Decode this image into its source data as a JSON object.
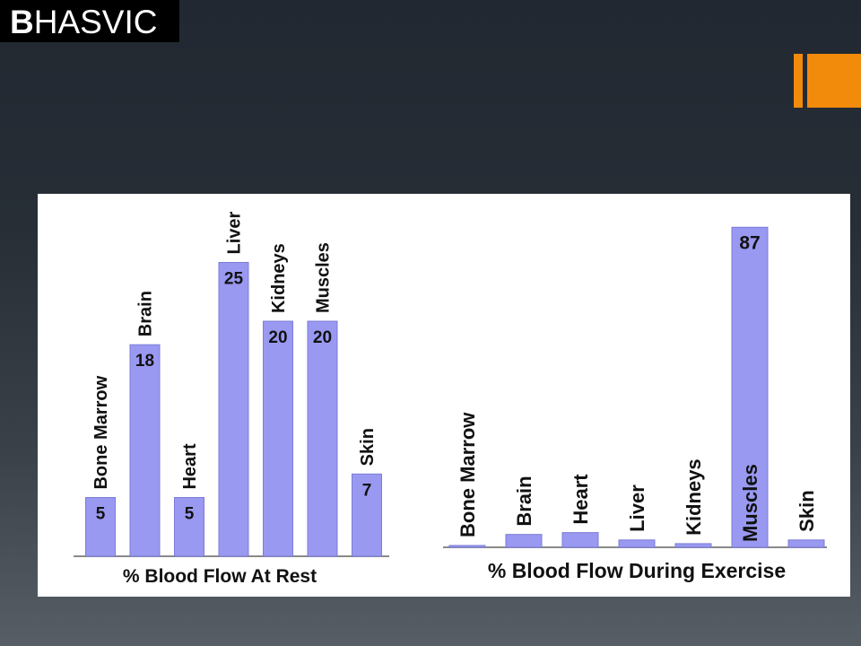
{
  "logo": {
    "text": "BHASVIC",
    "lead_letter": "B",
    "rest_letters": "HASVIC"
  },
  "colors": {
    "accent": "#f28a0b",
    "bar_fill": "#9999f2",
    "background_top": "#222831",
    "background_bottom": "#575e66"
  },
  "chart_data": [
    {
      "type": "bar",
      "title": "% Blood Flow At Rest",
      "categories": [
        "Bone Marrow",
        "Brain",
        "Heart",
        "Liver",
        "Kidneys",
        "Muscles",
        "Skin"
      ],
      "values": [
        5,
        18,
        5,
        25,
        20,
        20,
        7
      ],
      "data_labels": [
        "5",
        "18",
        "5",
        "25",
        "20",
        "20",
        "7"
      ],
      "grid": false
    },
    {
      "type": "bar",
      "title": "% Blood Flow During Exercise",
      "categories": [
        "Bone Marrow",
        "Brain",
        "Heart",
        "Liver",
        "Kidneys",
        "Muscles",
        "Skin"
      ],
      "values": [
        0.5,
        3.5,
        4,
        2,
        1,
        87,
        2
      ],
      "data_labels": [
        "",
        "",
        "",
        "",
        "",
        "87",
        ""
      ],
      "grid": false
    }
  ]
}
